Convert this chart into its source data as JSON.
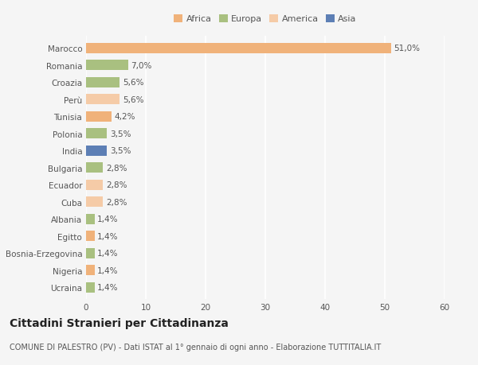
{
  "categories": [
    "Marocco",
    "Romania",
    "Croazia",
    "Perù",
    "Tunisia",
    "Polonia",
    "India",
    "Bulgaria",
    "Ecuador",
    "Cuba",
    "Albania",
    "Egitto",
    "Bosnia-Erzegovina",
    "Nigeria",
    "Ucraina"
  ],
  "values": [
    51.0,
    7.0,
    5.6,
    5.6,
    4.2,
    3.5,
    3.5,
    2.8,
    2.8,
    2.8,
    1.4,
    1.4,
    1.4,
    1.4,
    1.4
  ],
  "colors": [
    "#F0B27A",
    "#A9C080",
    "#A9C080",
    "#F5CBA7",
    "#F0B27A",
    "#A9C080",
    "#5D7FB5",
    "#A9C080",
    "#F5CBA7",
    "#F5CBA7",
    "#A9C080",
    "#F0B27A",
    "#A9C080",
    "#F0B27A",
    "#A9C080"
  ],
  "labels": [
    "51,0%",
    "7,0%",
    "5,6%",
    "5,6%",
    "4,2%",
    "3,5%",
    "3,5%",
    "2,8%",
    "2,8%",
    "2,8%",
    "1,4%",
    "1,4%",
    "1,4%",
    "1,4%",
    "1,4%"
  ],
  "xlim": [
    0,
    60
  ],
  "xticks": [
    0,
    10,
    20,
    30,
    40,
    50,
    60
  ],
  "legend": {
    "Africa": "#F0B27A",
    "Europa": "#A9C080",
    "America": "#F5CBA7",
    "Asia": "#5D7FB5"
  },
  "title": "Cittadini Stranieri per Cittadinanza",
  "subtitle": "COMUNE DI PALESTRO (PV) - Dati ISTAT al 1° gennaio di ogni anno - Elaborazione TUTTITALIA.IT",
  "background_color": "#F5F5F5",
  "bar_height": 0.6,
  "title_fontsize": 10,
  "subtitle_fontsize": 7,
  "label_fontsize": 7.5,
  "tick_fontsize": 7.5
}
